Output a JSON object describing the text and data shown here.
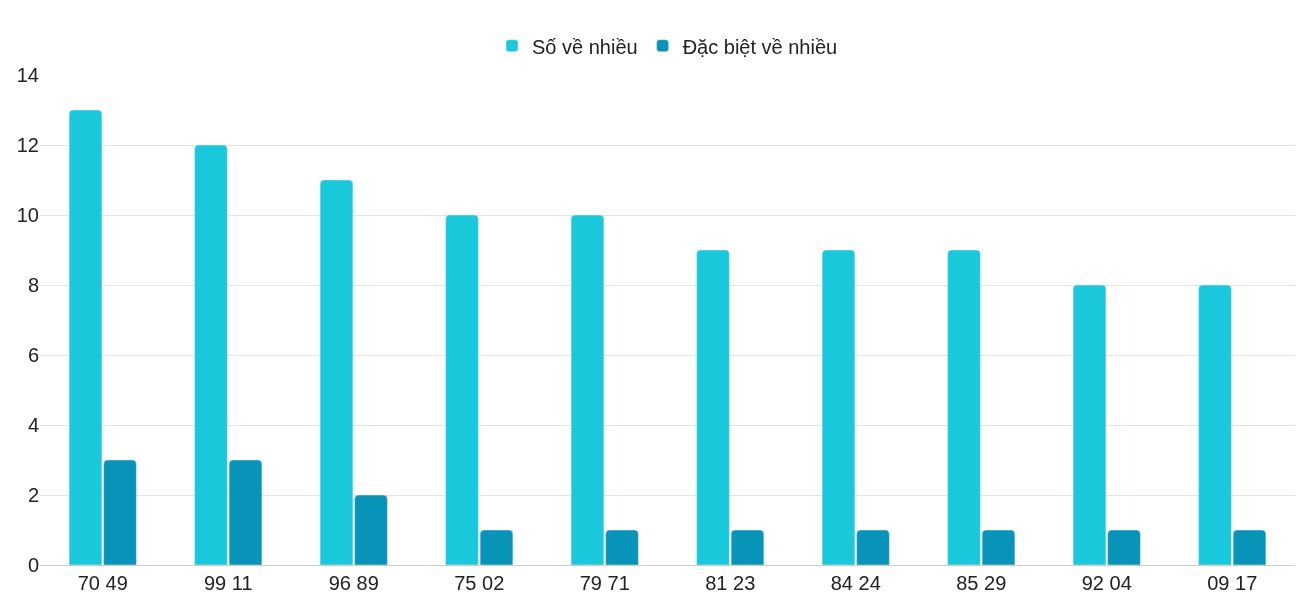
{
  "chart_data": {
    "type": "bar",
    "categories": [
      "70 49",
      "99 11",
      "96 89",
      "75 02",
      "79 71",
      "81 23",
      "84 24",
      "85 29",
      "92 04",
      "09 17"
    ],
    "series": [
      {
        "name": "Số về nhiều",
        "color": "#1ac8db",
        "values": [
          13,
          12,
          11,
          10,
          10,
          9,
          9,
          9,
          8,
          8
        ]
      },
      {
        "name": "Đặc biệt về nhiều",
        "color": "#0894b8",
        "values": [
          3,
          3,
          2,
          1,
          1,
          1,
          1,
          1,
          1,
          1
        ]
      }
    ],
    "ylim": [
      0,
      14
    ],
    "yticks": [
      0,
      2,
      4,
      6,
      8,
      10,
      12,
      14
    ],
    "grid": "y",
    "legend": "top"
  }
}
